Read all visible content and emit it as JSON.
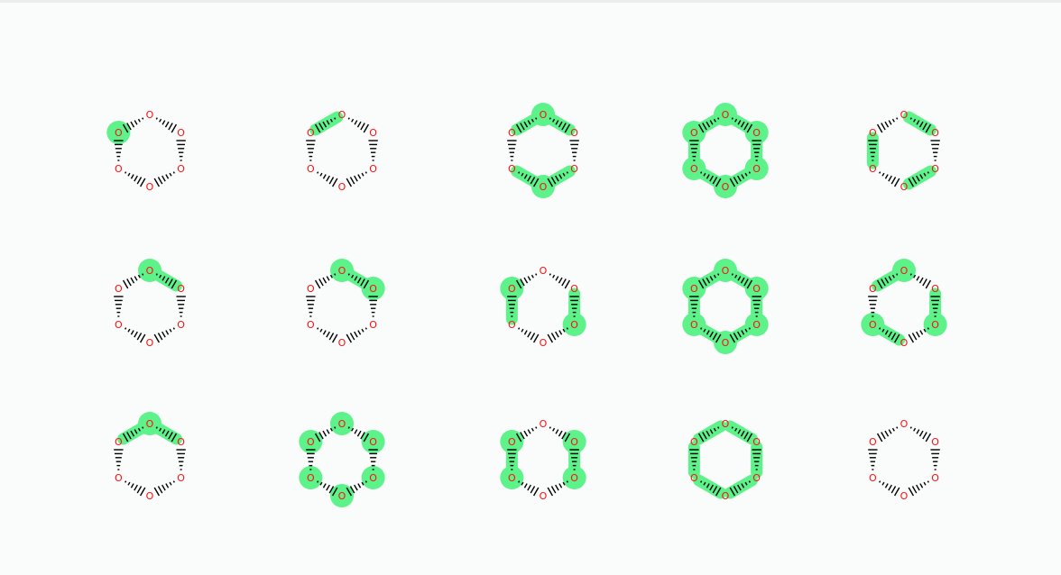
{
  "figure": {
    "colors": {
      "oxygen": "#ff0d0d",
      "highlight": "#5ef28a",
      "bond": "#000000",
      "background": "#fafbfb"
    },
    "molecules": [
      {
        "atoms": [
          "O",
          "O",
          "O",
          "O",
          "O",
          "O"
        ],
        "highlight_atoms": [
          5
        ],
        "highlight_bonds": []
      },
      {
        "atoms": [
          "O",
          "O",
          "O",
          "O",
          "O",
          "O"
        ],
        "highlight_atoms": [],
        "highlight_bonds": [
          5
        ]
      },
      {
        "atoms": [
          "O",
          "O",
          "O",
          "O",
          "O",
          "O"
        ],
        "highlight_atoms": [
          0,
          3
        ],
        "highlight_bonds": [
          0,
          5,
          2,
          3
        ]
      },
      {
        "atoms": [
          "O",
          "O",
          "O",
          "O",
          "O",
          "O"
        ],
        "highlight_atoms": [
          0,
          1,
          2,
          3,
          4,
          5
        ],
        "highlight_bonds": [
          0,
          1,
          2,
          3,
          4,
          5
        ]
      },
      {
        "atoms": [
          "O",
          "O",
          "O",
          "O",
          "O",
          "O"
        ],
        "highlight_atoms": [],
        "highlight_bonds": [
          0,
          2,
          4
        ]
      },
      {
        "atoms": [
          "O",
          "O",
          "O",
          "O",
          "O",
          "O"
        ],
        "highlight_atoms": [
          0
        ],
        "highlight_bonds": [
          0
        ]
      },
      {
        "atoms": [
          "O",
          "O",
          "O",
          "O",
          "O",
          "O"
        ],
        "highlight_atoms": [
          0,
          1
        ],
        "highlight_bonds": [
          0
        ]
      },
      {
        "atoms": [
          "O",
          "O",
          "O",
          "O",
          "O",
          "O"
        ],
        "highlight_atoms": [
          2,
          5
        ],
        "highlight_bonds": [
          1,
          4
        ]
      },
      {
        "atoms": [
          "O",
          "O",
          "O",
          "O",
          "O",
          "O"
        ],
        "highlight_atoms": [
          0,
          1,
          2,
          3,
          4,
          5
        ],
        "highlight_bonds": [
          0,
          1,
          2,
          3,
          4,
          5
        ]
      },
      {
        "atoms": [
          "O",
          "O",
          "O",
          "O",
          "O",
          "O"
        ],
        "highlight_atoms": [
          0,
          4,
          2
        ],
        "highlight_bonds": [
          5,
          3,
          1
        ]
      },
      {
        "atoms": [
          "O",
          "O",
          "O",
          "O",
          "O",
          "O"
        ],
        "highlight_atoms": [
          0
        ],
        "highlight_bonds": [
          0,
          5
        ]
      },
      {
        "atoms": [
          "O",
          "O",
          "O",
          "O",
          "O",
          "O"
        ],
        "highlight_atoms": [
          0,
          1,
          2,
          3,
          4,
          5
        ],
        "highlight_bonds": []
      },
      {
        "atoms": [
          "O",
          "O",
          "O",
          "O",
          "O",
          "O"
        ],
        "highlight_atoms": [
          1,
          2,
          4,
          5
        ],
        "highlight_bonds": [
          1,
          4
        ]
      },
      {
        "atoms": [
          "O",
          "O",
          "O",
          "O",
          "O",
          "O"
        ],
        "highlight_atoms": [],
        "highlight_bonds": [
          0,
          1,
          2,
          3,
          4,
          5
        ]
      },
      {
        "atoms": [
          "O",
          "O",
          "O",
          "O",
          "O",
          "O"
        ],
        "highlight_atoms": [],
        "highlight_bonds": []
      }
    ]
  }
}
